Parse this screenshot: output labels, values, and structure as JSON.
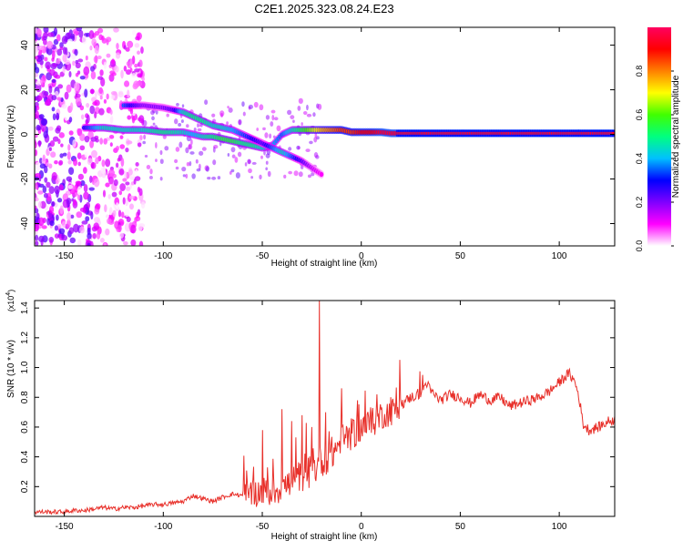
{
  "figure_title": "C2E1.2025.323.08.24.E23",
  "chart_data": [
    {
      "type": "heatmap",
      "title": "C2E1.2025.323.08.24.E23",
      "xlabel": "Height of straight line (km)",
      "ylabel": "Frequency (Hz)",
      "xlim": [
        -165,
        128
      ],
      "ylim": [
        -50,
        48
      ],
      "xticks": [
        -150,
        -100,
        -50,
        0,
        50,
        100
      ],
      "yticks": [
        -40,
        -20,
        0,
        20,
        40
      ],
      "colorbar": {
        "label": "Normalized spectral amplitude",
        "range": [
          0,
          1
        ],
        "ticks": [
          "0.0",
          "0.2",
          "0.4",
          "0.6",
          "0.8"
        ],
        "tick_values": [
          0,
          0.2,
          0.4,
          0.6,
          0.8
        ],
        "colormap": [
          "#ffffff",
          "#ff00ff",
          "#7f00ff",
          "#0000ff",
          "#00c0ff",
          "#00ff80",
          "#40ff00",
          "#ffff00",
          "#ff8000",
          "#ff0000",
          "#ff0060"
        ]
      },
      "ridges": [
        {
          "x": [
            -140,
            -130,
            -120,
            -110,
            -100,
            -90,
            -85,
            -80,
            -75,
            -70,
            -65,
            -60,
            -55,
            -50,
            -45,
            -40,
            -35,
            -30,
            -25,
            -20,
            -15,
            -10,
            -5,
            0,
            5,
            10,
            15,
            20,
            128
          ],
          "y": [
            3,
            3,
            2,
            2,
            1,
            1,
            0,
            -1,
            -1,
            -2,
            -3,
            -4,
            -5,
            -6,
            -5,
            0,
            2,
            2,
            2,
            2,
            2,
            2,
            1,
            1,
            1,
            1,
            0.5,
            0.5,
            0.5
          ],
          "amplitude": [
            0.3,
            0.45,
            0.45,
            0.45,
            0.5,
            0.45,
            0.4,
            0.45,
            0.5,
            0.55,
            0.55,
            0.5,
            0.5,
            0.45,
            0.4,
            0.35,
            0.45,
            0.55,
            0.65,
            0.75,
            0.8,
            0.85,
            0.85,
            0.9,
            0.9,
            0.95,
            0.95,
            0.95,
            0.95
          ]
        },
        {
          "x": [
            -120,
            -110,
            -100,
            -95,
            -90,
            -85,
            -80,
            -75,
            -70,
            -65,
            -60,
            -55,
            -50,
            -45,
            -40,
            -35,
            -30,
            -25,
            -20
          ],
          "y": [
            13,
            13,
            12,
            11,
            10,
            8,
            6,
            4,
            3,
            2,
            0,
            -2,
            -4,
            -6,
            -8,
            -10,
            -12,
            -15,
            -18
          ],
          "amplitude": [
            0.35,
            0.2,
            0.2,
            0.25,
            0.45,
            0.5,
            0.5,
            0.45,
            0.45,
            0.4,
            0.35,
            0.3,
            0.25,
            0.35,
            0.45,
            0.35,
            0.25,
            0.15,
            0.1
          ]
        }
      ],
      "noise_region": {
        "x": [
          -165,
          -110
        ],
        "y": [
          -50,
          48
        ],
        "amplitude_max": 0.25
      }
    },
    {
      "type": "line",
      "xlabel": "Height of straight line (km)",
      "ylabel": "SNR (10 * v/v)",
      "y_multiplier_label": "(x10",
      "y_multiplier_exponent": "4",
      "y_multiplier_suffix": ")",
      "xlim": [
        -165,
        128
      ],
      "ylim": [
        0,
        1.45
      ],
      "xticks": [
        -150,
        -100,
        -50,
        0,
        50,
        100
      ],
      "yticks": [
        0.2,
        0.4,
        0.6,
        0.8,
        1.0,
        1.2,
        1.4
      ],
      "ytick_labels": [
        "0.2",
        "0.4",
        "0.6",
        "0.8",
        "1.0",
        "1.2",
        "1.4"
      ],
      "line_color": "#e8302a",
      "x": [
        -165,
        -160,
        -155,
        -150,
        -145,
        -140,
        -135,
        -130,
        -125,
        -120,
        -115,
        -110,
        -105,
        -100,
        -95,
        -90,
        -85,
        -80,
        -75,
        -70,
        -65,
        -60,
        -55,
        -50,
        -45,
        -40,
        -35,
        -30,
        -25,
        -21,
        -20,
        -15,
        -10,
        -5,
        0,
        5,
        10,
        15,
        20,
        25,
        30,
        33,
        35,
        40,
        45,
        50,
        55,
        60,
        65,
        70,
        75,
        80,
        85,
        90,
        95,
        100,
        103,
        105,
        108,
        110,
        112,
        115,
        120,
        125,
        128
      ],
      "y": [
        0.03,
        0.03,
        0.03,
        0.03,
        0.04,
        0.04,
        0.05,
        0.06,
        0.05,
        0.06,
        0.06,
        0.07,
        0.08,
        0.08,
        0.09,
        0.1,
        0.14,
        0.12,
        0.1,
        0.13,
        0.15,
        0.14,
        0.15,
        0.17,
        0.16,
        0.2,
        0.22,
        0.28,
        0.3,
        0.35,
        0.38,
        0.42,
        0.5,
        0.55,
        0.6,
        0.62,
        0.68,
        0.7,
        0.75,
        0.8,
        0.82,
        0.9,
        0.84,
        0.78,
        0.82,
        0.8,
        0.76,
        0.82,
        0.78,
        0.8,
        0.74,
        0.76,
        0.78,
        0.8,
        0.84,
        0.9,
        0.94,
        0.96,
        0.9,
        0.8,
        0.62,
        0.58,
        0.6,
        0.64,
        0.65
      ],
      "spikes": [
        {
          "x": -21,
          "y": 1.45
        },
        {
          "x": -50,
          "y": 0.58
        },
        {
          "x": -40,
          "y": 0.72
        },
        {
          "x": -35,
          "y": 0.64
        },
        {
          "x": -30,
          "y": 0.68
        },
        {
          "x": -25,
          "y": 0.6
        },
        {
          "x": -18,
          "y": 0.7
        },
        {
          "x": -10,
          "y": 0.86
        },
        {
          "x": -2,
          "y": 0.78
        },
        {
          "x": 8,
          "y": 0.82
        },
        {
          "x": 15,
          "y": 0.8
        },
        {
          "x": 31,
          "y": 0.95
        }
      ]
    }
  ]
}
